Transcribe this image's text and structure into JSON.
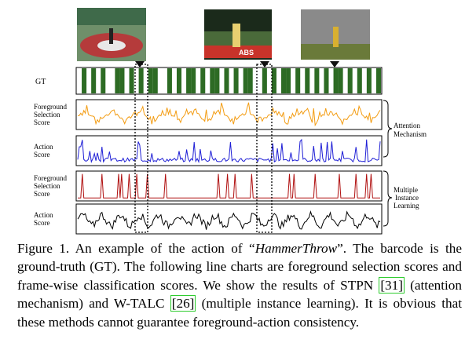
{
  "figure": {
    "gt_label": "GT",
    "gt_pattern": [
      0,
      1,
      0,
      1,
      0,
      1,
      0,
      0,
      1,
      1,
      0,
      1,
      0,
      1,
      0,
      1,
      1,
      0,
      0,
      1,
      0,
      1,
      0,
      1,
      1,
      0,
      1,
      0,
      1,
      1,
      0,
      1,
      0,
      1,
      0,
      1,
      1,
      0,
      0,
      1,
      0,
      1,
      0,
      1,
      1,
      0,
      1,
      0,
      1,
      0,
      1,
      0,
      1,
      0,
      1,
      1,
      0,
      1,
      0,
      1,
      0,
      1,
      0,
      1
    ],
    "rows": [
      {
        "label_lines": [
          "Foreground",
          "Selection",
          "Score"
        ],
        "color": "#f39c12",
        "kind": "orange"
      },
      {
        "label_lines": [
          "Action",
          "Score"
        ],
        "color": "#1f1fd6",
        "kind": "blue"
      },
      {
        "label_lines": [
          "Foreground",
          "Selection",
          "Score"
        ],
        "color": "#b01010",
        "kind": "red"
      },
      {
        "label_lines": [
          "Action",
          "Score"
        ],
        "color": "#000000",
        "kind": "black"
      }
    ],
    "groups": [
      {
        "label_lines": [
          "Attention",
          "Mechanism"
        ]
      },
      {
        "label_lines": [
          "Multiple",
          "Instance",
          "Learning"
        ]
      }
    ],
    "thumbnails": [
      {
        "caption": ""
      },
      {
        "caption": "ABS"
      },
      {
        "caption": ""
      }
    ]
  },
  "caption": {
    "p1": "Figure 1. An example of the action of “",
    "italic": "HammerThrow",
    "p2": "”.  The barcode is the ground-truth (GT). The following line charts are foreground selection scores and frame-wise classification scores. We show the results of STPN ",
    "cite1": "[31]",
    "p3": " (attention mechanism) and W-TALC ",
    "cite2": "[26]",
    "p4": " (multiple instance learning).  It is obvious that these methods cannot guarantee foreground-action consistency."
  }
}
